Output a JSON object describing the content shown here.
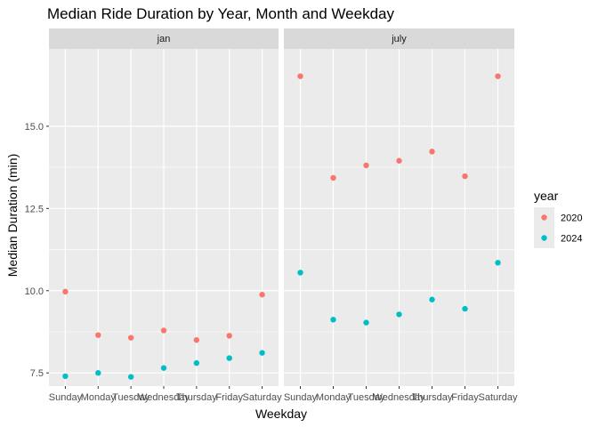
{
  "chart_data": {
    "type": "scatter",
    "title": "Median Ride Duration by Year, Month and Weekday",
    "xlabel": "Weekday",
    "ylabel": "Median Duration (min)",
    "ylim": [
      7.1,
      17.35
    ],
    "yticks": [
      7.5,
      10.0,
      12.5,
      15.0
    ],
    "ytick_labels": [
      "7.5",
      "10.0",
      "12.5",
      "15.0"
    ],
    "categories": [
      "Sunday",
      "Monday",
      "Tuesday",
      "Wednesday",
      "Thursday",
      "Friday",
      "Saturday"
    ],
    "grid": true,
    "legend": {
      "title": "year",
      "placement": "right"
    },
    "series_colors": {
      "2020": "#F8766D",
      "2024": "#00BFC4"
    },
    "facets": [
      {
        "label": "jan",
        "series": [
          {
            "name": "2020",
            "values": [
              9.97,
              8.65,
              8.57,
              8.79,
              8.5,
              8.63,
              9.88
            ]
          },
          {
            "name": "2024",
            "values": [
              7.4,
              7.5,
              7.38,
              7.65,
              7.8,
              7.95,
              8.11
            ]
          }
        ]
      },
      {
        "label": "july",
        "series": [
          {
            "name": "2020",
            "values": [
              16.52,
              13.43,
              13.81,
              13.95,
              14.23,
              13.48,
              16.52
            ]
          },
          {
            "name": "2024",
            "values": [
              10.55,
              9.12,
              9.03,
              9.28,
              9.73,
              9.45,
              10.85
            ]
          }
        ]
      }
    ]
  }
}
